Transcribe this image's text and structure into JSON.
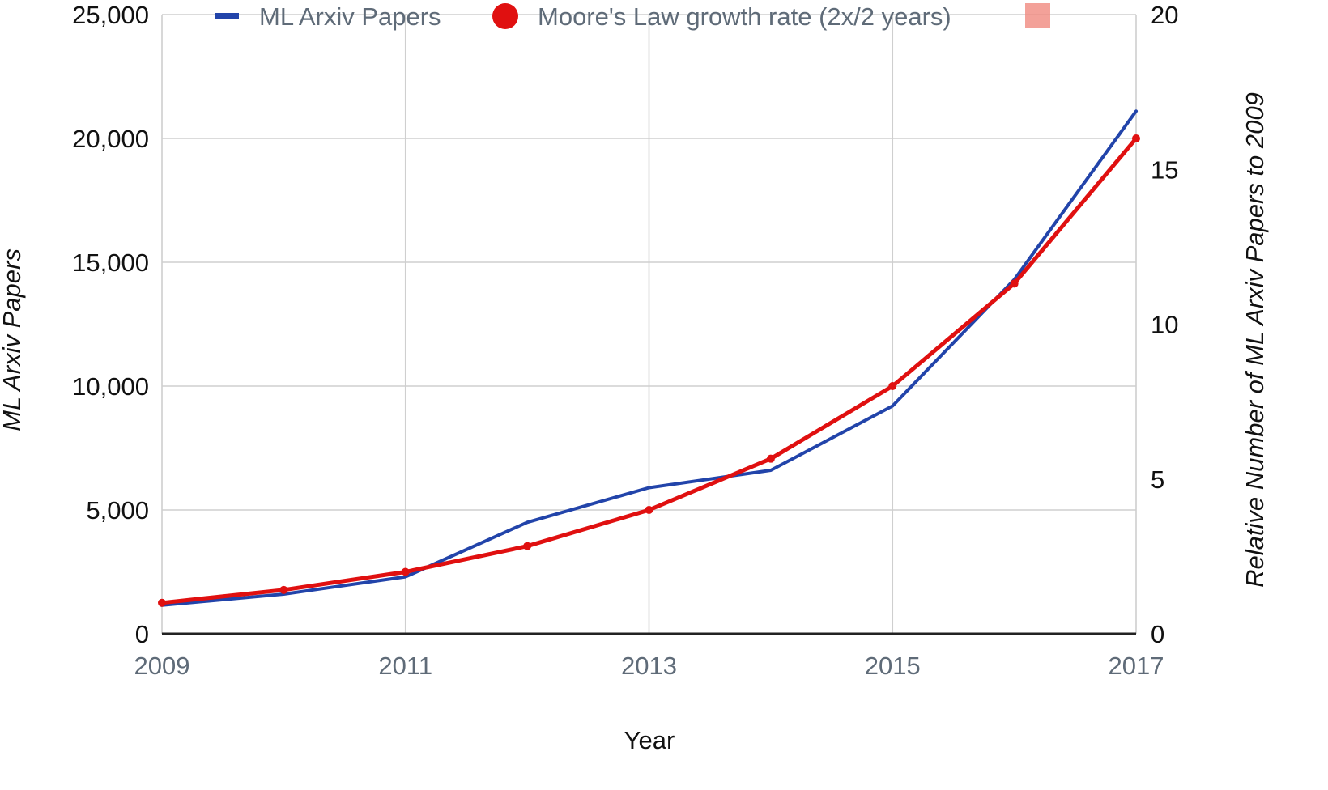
{
  "chart_data": {
    "type": "line",
    "title": "",
    "xlabel": "Year",
    "ylabel": "ML Arxiv Papers",
    "ylabel_right": "Relative Number of ML Arxiv Papers  to 2009",
    "xlim": [
      2009,
      2017
    ],
    "ylim": [
      0,
      25000
    ],
    "ylim_right": [
      0,
      20
    ],
    "x_ticks": [
      2009,
      2011,
      2013,
      2015,
      2017
    ],
    "y_ticks": [
      0,
      5000,
      10000,
      15000,
      20000,
      25000
    ],
    "y_tick_labels": [
      "0",
      "5,000",
      "10,000",
      "15,000",
      "20,000",
      "25,000"
    ],
    "y_ticks_right": [
      0,
      5,
      10,
      15,
      20
    ],
    "y_tick_labels_right": [
      "0",
      "5",
      "10",
      "15",
      "20"
    ],
    "vertical_grid_x": [
      2011,
      2013,
      2015
    ],
    "grid": true,
    "legend_position": "top",
    "legend": [
      {
        "label": "ML Arxiv Papers",
        "marker": "line",
        "color": "#2244aa"
      },
      {
        "label": "Moore's Law growth rate (2x/2 years)",
        "marker": "circle",
        "color": "#e01010"
      },
      {
        "label": "",
        "marker": "square",
        "color": "#f08a80"
      }
    ],
    "series": [
      {
        "name": "ML Arxiv Papers",
        "axis": "left",
        "color": "#2244aa",
        "x": [
          2009,
          2010,
          2011,
          2012,
          2013,
          2014,
          2015,
          2016,
          2017
        ],
        "y": [
          1150,
          1600,
          2300,
          4500,
          5900,
          6600,
          9200,
          14300,
          21100
        ]
      },
      {
        "name": "Moore's Law growth rate (2x/2 years)",
        "axis": "left",
        "color": "#e01010",
        "x": [
          2009,
          2010,
          2011,
          2012,
          2013,
          2014,
          2015,
          2016,
          2017
        ],
        "y": [
          1250,
          1770,
          2500,
          3540,
          5000,
          7070,
          10000,
          14140,
          20000
        ]
      }
    ]
  }
}
